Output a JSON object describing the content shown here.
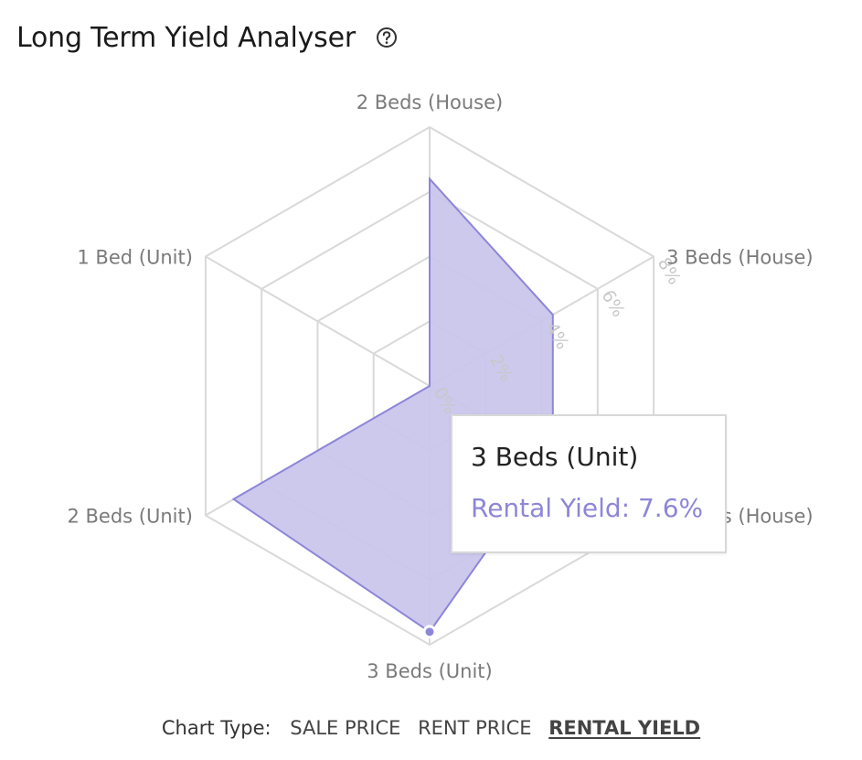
{
  "header": {
    "title": "Long Term Yield Analyser",
    "help_icon": "question-circle-icon"
  },
  "chart_data": {
    "type": "radar",
    "axes": [
      "2 Beds (House)",
      "3 Beds (House)",
      "4 Beds (House)",
      "3 Beds (Unit)",
      "2 Beds (Unit)",
      "1 Bed (Unit)"
    ],
    "tick_labels": [
      "0%",
      "2%",
      "4%",
      "6%",
      "8%"
    ],
    "range": [
      0,
      8
    ],
    "series": [
      {
        "values": [
          6.4,
          4.4,
          4.4,
          7.6,
          7.0,
          0.0
        ],
        "fill": "#c9c6ec",
        "stroke": "#8d86d8"
      }
    ],
    "grid": true,
    "highlighted_axis_index": 3
  },
  "tooltip": {
    "title": "3 Beds (Unit)",
    "value": "Rental Yield: 7.6%"
  },
  "footer": {
    "label": "Chart Type:",
    "options": [
      "SALE PRICE",
      "RENT PRICE",
      "RENTAL YIELD"
    ],
    "active_index": 2
  }
}
